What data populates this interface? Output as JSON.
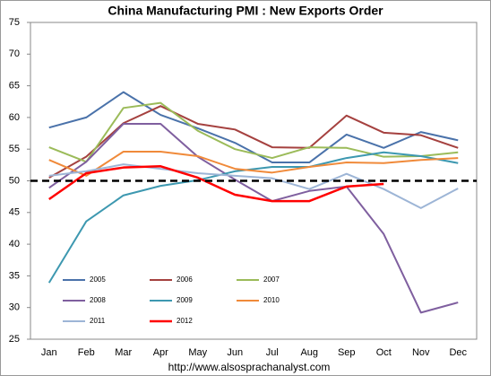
{
  "chart_data": {
    "type": "line",
    "title": "China Manufacturing PMI : New Exports Order",
    "source": "http://www.alsosprachanalyst.com",
    "categories": [
      "Jan",
      "Feb",
      "Mar",
      "Apr",
      "May",
      "Jun",
      "Jul",
      "Aug",
      "Sep",
      "Oct",
      "Nov",
      "Dec"
    ],
    "ylim": [
      25,
      75
    ],
    "yticks": [
      25,
      30,
      35,
      40,
      45,
      50,
      55,
      60,
      65,
      70,
      75
    ],
    "threshold": 50,
    "grid": false,
    "legend": "lower left",
    "series": [
      {
        "name": "2005",
        "color": "#4a72aa",
        "values": [
          58.4,
          60,
          64,
          60.4,
          58.3,
          56,
          52.9,
          52.9,
          57.3,
          55.2,
          57.7,
          56.4
        ]
      },
      {
        "name": "2006",
        "color": "#a5413f",
        "values": [
          50.5,
          53.8,
          59.1,
          61.8,
          59,
          58.1,
          55.3,
          55.2,
          60.3,
          57.6,
          57.2,
          55.2
        ]
      },
      {
        "name": "2007",
        "color": "#9bbb59",
        "values": [
          55.3,
          53,
          61.5,
          62.3,
          57.9,
          55,
          53.6,
          55.3,
          55.2,
          53.8,
          53.9,
          54.5
        ]
      },
      {
        "name": "2008",
        "color": "#7f5f9f",
        "values": [
          48.9,
          53,
          59,
          59,
          53.8,
          50.2,
          46.8,
          48.4,
          49.1,
          41.6,
          29.2,
          30.8
        ]
      },
      {
        "name": "2009",
        "color": "#3d98b0",
        "values": [
          33.9,
          43.6,
          47.7,
          49.2,
          50.1,
          51.5,
          52.2,
          52.2,
          53.6,
          54.5,
          53.9,
          52.8
        ]
      },
      {
        "name": "2010",
        "color": "#f08a3a",
        "values": [
          53.3,
          50.8,
          54.6,
          54.6,
          53.9,
          51.9,
          51.3,
          52.2,
          52.9,
          52.8,
          53.3,
          53.6
        ]
      },
      {
        "name": "2011",
        "color": "#9db5d6",
        "values": [
          50.8,
          51.5,
          52.6,
          51.9,
          51.2,
          50.8,
          50.4,
          48.7,
          51.1,
          48.7,
          45.7,
          48.8
        ]
      },
      {
        "name": "2012",
        "color": "#ff0000",
        "values": [
          47.1,
          51.2,
          52.1,
          52.3,
          50.5,
          47.8,
          46.8,
          46.8,
          49.1,
          49.5,
          null,
          null
        ]
      }
    ]
  }
}
